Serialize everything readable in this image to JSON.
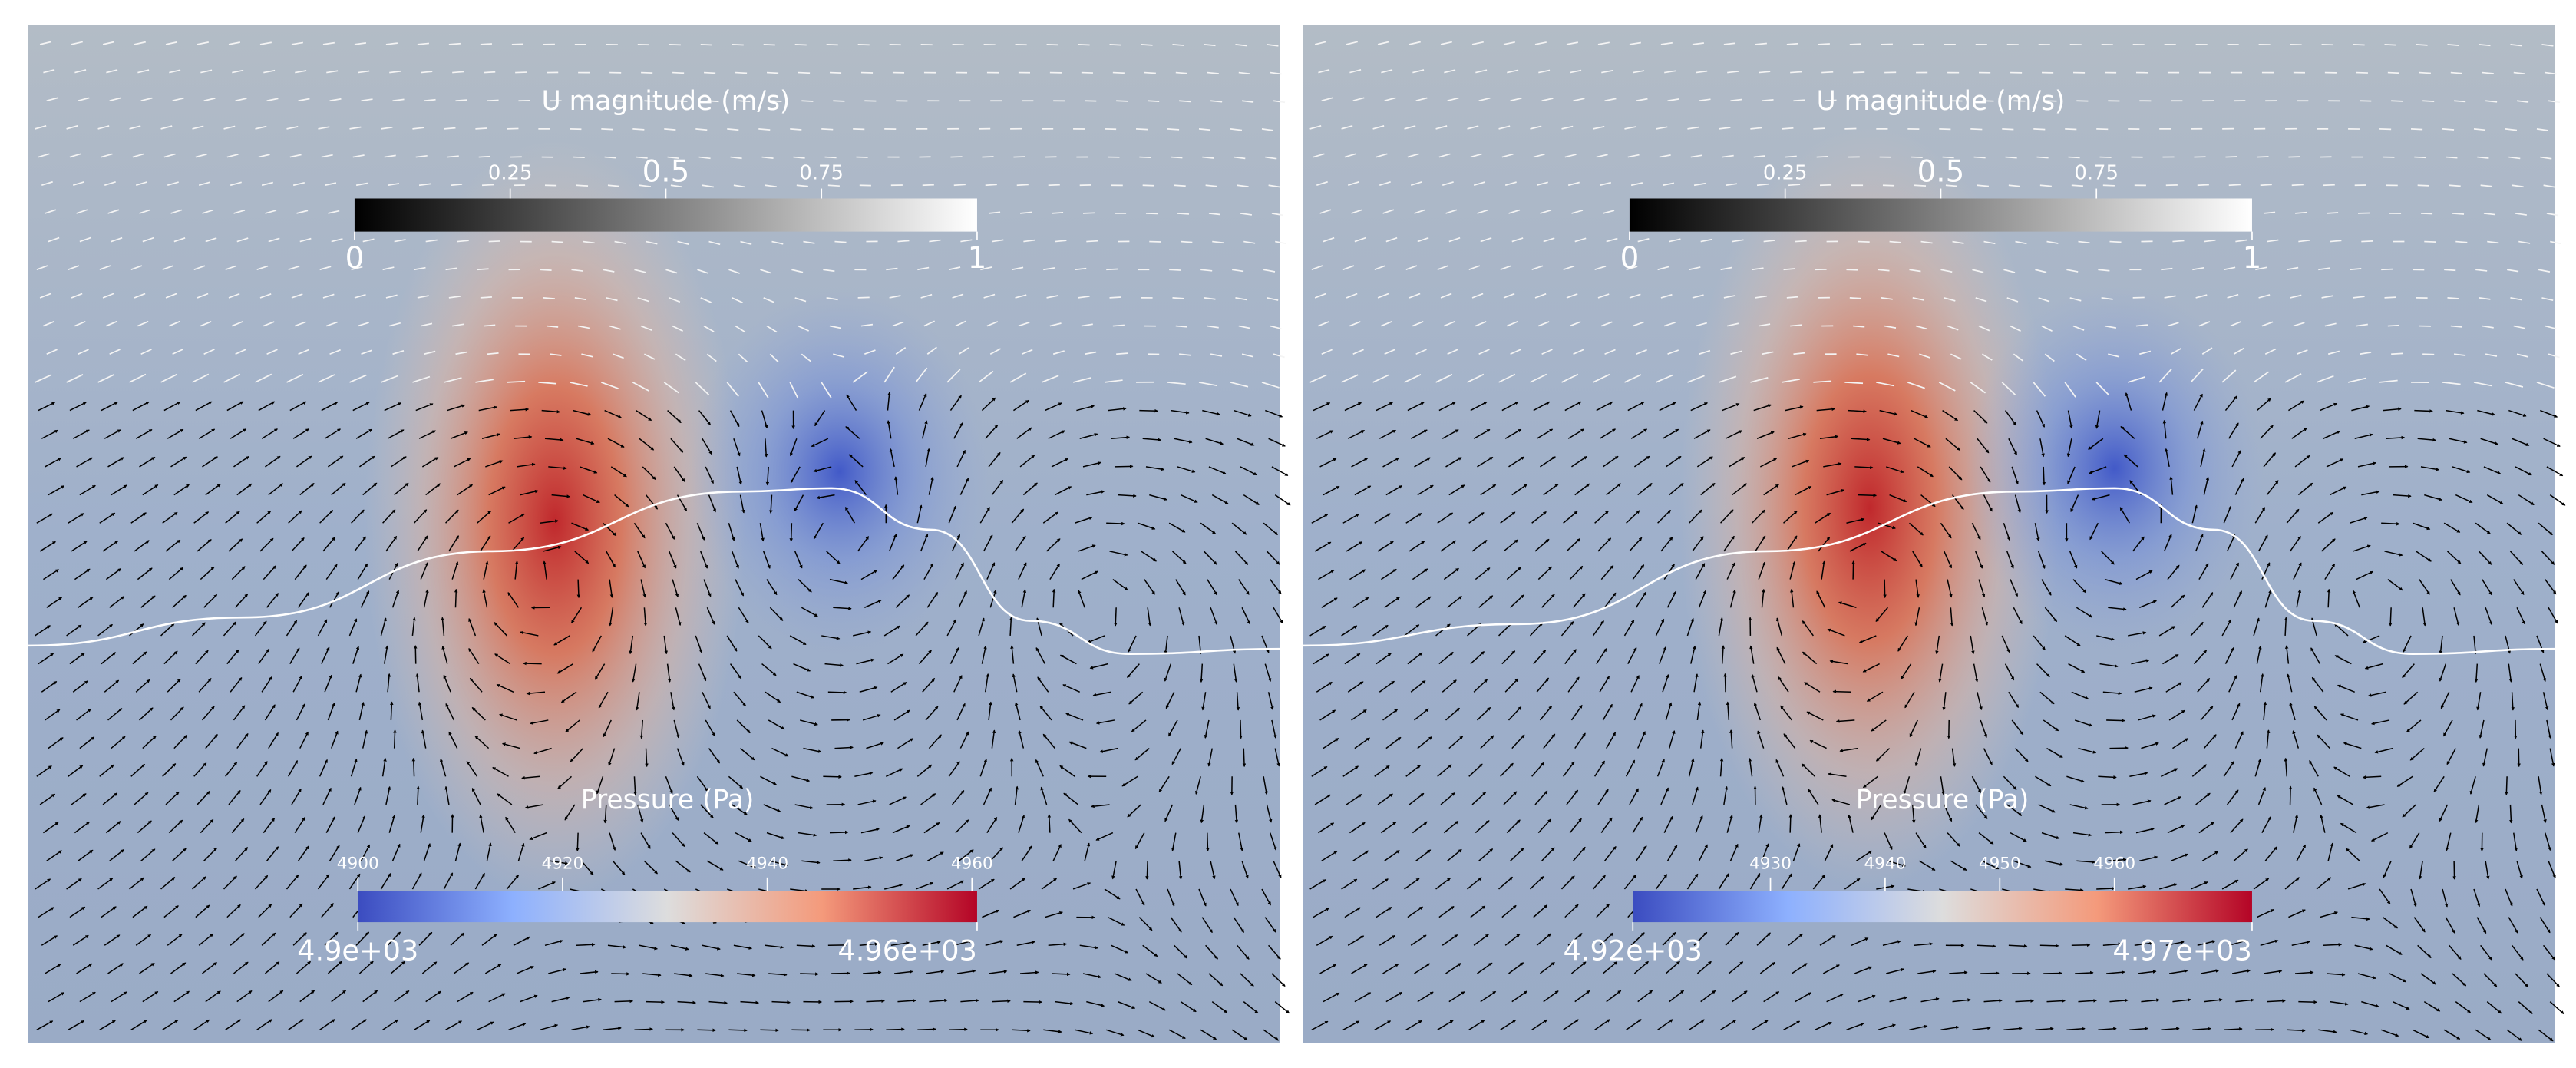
{
  "panels": [
    {
      "velocity_bar": {
        "title": "U magnitude (m/s)",
        "range": [
          0,
          1
        ],
        "ticks": [
          0.25,
          0.5,
          0.75
        ]
      },
      "pressure_bar": {
        "title": "Pressure (Pa)",
        "range": [
          {
            "value": 4900,
            "label": "4.9e+03"
          },
          {
            "value": 4960.5,
            "label": "4.96e+03"
          }
        ],
        "ticks": [
          4900,
          4920,
          4940,
          4960
        ]
      }
    },
    {
      "velocity_bar": {
        "title": "U magnitude (m/s)",
        "range": [
          0,
          1
        ],
        "ticks": [
          0.25,
          0.5,
          0.75
        ]
      },
      "pressure_bar": {
        "title": "Pressure (Pa)",
        "range": [
          {
            "value": 4918,
            "label": "4.92e+03"
          },
          {
            "value": 4972,
            "label": "4.97e+03"
          }
        ],
        "ticks": [
          4930,
          4940,
          4950,
          4960
        ]
      }
    }
  ]
}
